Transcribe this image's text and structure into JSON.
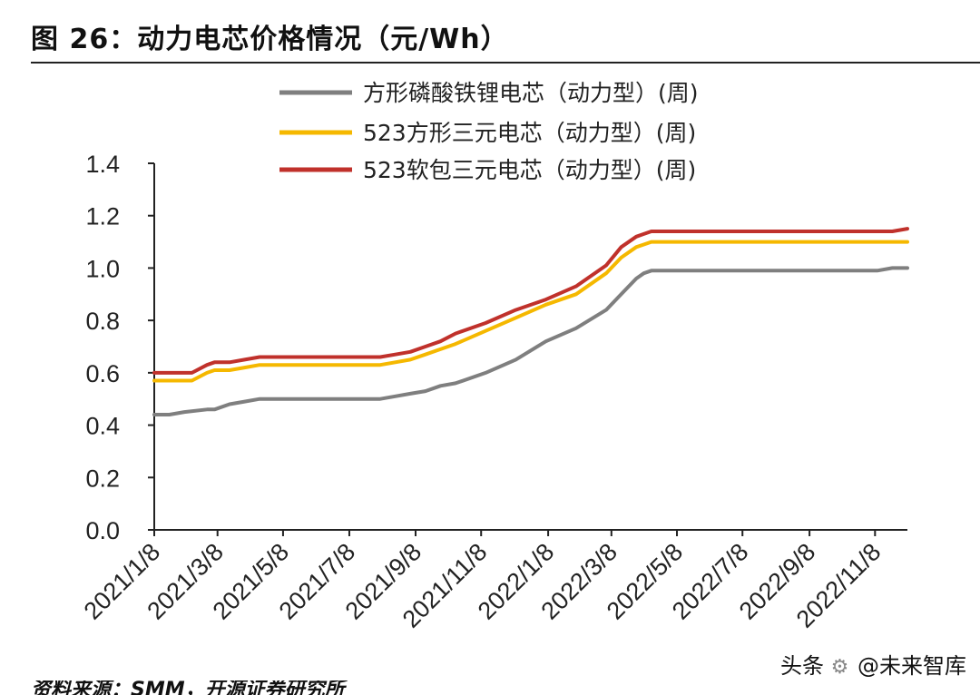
{
  "title": "图 26：动力电芯价格情况（元/Wh）",
  "source": "资料来源：SMM，开源证券研究所",
  "watermark": {
    "platform": "头条",
    "account": "@未来智库",
    "icon": "gear-icon"
  },
  "chart_data": {
    "type": "line",
    "title": "图 26：动力电芯价格情况（元/Wh）",
    "xlabel": "",
    "ylabel": "",
    "ylim": [
      0,
      1.4
    ],
    "yticks": [
      "0.0",
      "0.2",
      "0.4",
      "0.6",
      "0.8",
      "1.0",
      "1.2",
      "1.4"
    ],
    "xlim_weeks": [
      0,
      100
    ],
    "xtick_labels": [
      "2021/1/8",
      "2021/3/8",
      "2021/5/8",
      "2021/7/8",
      "2021/9/8",
      "2021/11/8",
      "2022/1/8",
      "2022/3/8",
      "2022/5/8",
      "2022/7/8",
      "2022/9/8",
      "2022/11/8"
    ],
    "xtick_weeks": [
      0,
      8.4,
      17.1,
      25.9,
      34.7,
      43.4,
      52.3,
      60.7,
      69.4,
      78.1,
      87.0,
      95.7
    ],
    "legend_position": "top",
    "series": [
      {
        "name": "方形磷酸铁锂电芯（动力型）(周)",
        "color": "#7f7f7f",
        "x": [
          0,
          2,
          4,
          7,
          8,
          10,
          12,
          14,
          16,
          18,
          20,
          23,
          26,
          28,
          30,
          32,
          34,
          36,
          38,
          40,
          44,
          48,
          52,
          56,
          60,
          62,
          64,
          65,
          66,
          67,
          69,
          73,
          78,
          84,
          90,
          96,
          98,
          100
        ],
        "values": [
          0.44,
          0.44,
          0.45,
          0.46,
          0.46,
          0.48,
          0.49,
          0.5,
          0.5,
          0.5,
          0.5,
          0.5,
          0.5,
          0.5,
          0.5,
          0.51,
          0.52,
          0.53,
          0.55,
          0.56,
          0.6,
          0.65,
          0.72,
          0.77,
          0.84,
          0.9,
          0.96,
          0.98,
          0.99,
          0.99,
          0.99,
          0.99,
          0.99,
          0.99,
          0.99,
          0.99,
          1.0,
          1.0
        ]
      },
      {
        "name": "523方形三元电芯（动力型）(周)",
        "color": "#f5b800",
        "x": [
          0,
          3,
          5,
          7,
          8,
          10,
          12,
          14,
          16,
          18,
          20,
          23,
          26,
          28,
          30,
          32,
          34,
          36,
          38,
          40,
          44,
          48,
          52,
          56,
          60,
          62,
          64,
          65,
          66,
          67,
          69,
          73,
          78,
          84,
          90,
          96,
          98,
          100
        ],
        "values": [
          0.57,
          0.57,
          0.57,
          0.6,
          0.61,
          0.61,
          0.62,
          0.63,
          0.63,
          0.63,
          0.63,
          0.63,
          0.63,
          0.63,
          0.63,
          0.64,
          0.65,
          0.67,
          0.69,
          0.71,
          0.76,
          0.81,
          0.86,
          0.9,
          0.98,
          1.04,
          1.08,
          1.09,
          1.1,
          1.1,
          1.1,
          1.1,
          1.1,
          1.1,
          1.1,
          1.1,
          1.1,
          1.1
        ]
      },
      {
        "name": "523软包三元电芯（动力型）(周)",
        "color": "#c0312b",
        "x": [
          0,
          3,
          5,
          7,
          8,
          10,
          12,
          14,
          16,
          18,
          20,
          23,
          26,
          28,
          30,
          32,
          34,
          36,
          38,
          40,
          44,
          48,
          52,
          56,
          60,
          62,
          64,
          65,
          66,
          67,
          69,
          73,
          78,
          84,
          90,
          96,
          98,
          100
        ],
        "values": [
          0.6,
          0.6,
          0.6,
          0.63,
          0.64,
          0.64,
          0.65,
          0.66,
          0.66,
          0.66,
          0.66,
          0.66,
          0.66,
          0.66,
          0.66,
          0.67,
          0.68,
          0.7,
          0.72,
          0.75,
          0.79,
          0.84,
          0.88,
          0.93,
          1.01,
          1.08,
          1.12,
          1.13,
          1.14,
          1.14,
          1.14,
          1.14,
          1.14,
          1.14,
          1.14,
          1.14,
          1.14,
          1.15
        ]
      }
    ]
  }
}
